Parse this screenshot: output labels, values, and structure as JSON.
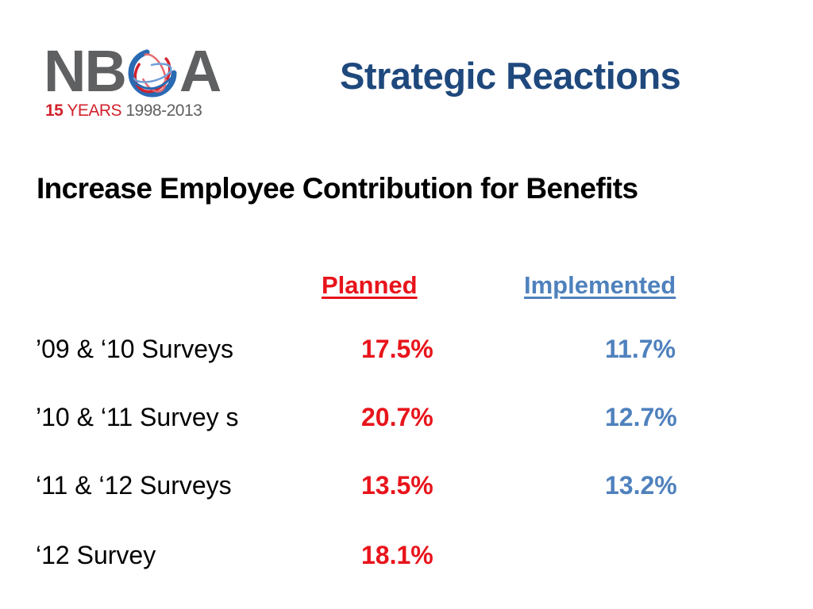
{
  "logo": {
    "wordmark_left": "NB",
    "wordmark_right": "A",
    "years_number": "15",
    "years_word": "YEARS",
    "years_range": "1998-2013",
    "colors": {
      "gray": "#5f6062",
      "red": "#d2222d",
      "blue": "#2a6ab3"
    }
  },
  "title": "Strategic Reactions",
  "subtitle": "Increase Employee Contribution for Benefits",
  "columns": {
    "planned": "Planned",
    "implemented": "Implemented"
  },
  "rows": [
    {
      "label": "’09 & ‘10 Surveys",
      "planned": "17.5%",
      "implemented": "11.7%"
    },
    {
      "label": "’10 & ‘11 Survey s",
      "planned": "20.7%",
      "implemented": "12.7%"
    },
    {
      "label": "‘11 & ‘12 Surveys",
      "planned": "13.5%",
      "implemented": "13.2%"
    },
    {
      "label": "‘12 Survey",
      "planned": "18.1%",
      "implemented": ""
    }
  ],
  "colors": {
    "title": "#1f497d",
    "planned": "#e8141b",
    "implemented": "#4f81bd",
    "text": "#000000"
  }
}
